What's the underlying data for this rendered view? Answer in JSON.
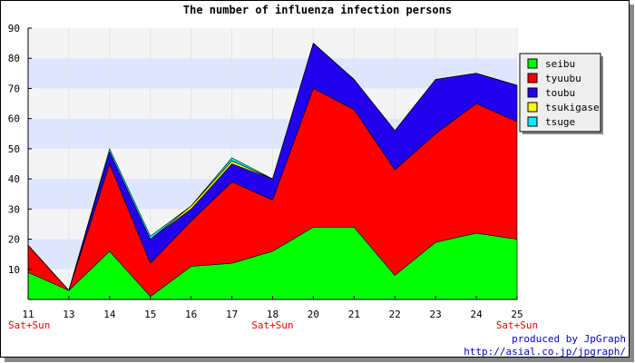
{
  "chart_data": {
    "type": "area",
    "stacked": true,
    "title": "The number of influenza infection persons",
    "x": [
      "11",
      "13",
      "14",
      "15",
      "16",
      "17",
      "18",
      "20",
      "21",
      "22",
      "23",
      "24",
      "25"
    ],
    "weekend_labels": [
      {
        "x": "11",
        "label": "Sat+Sun"
      },
      {
        "x": "18",
        "label": "Sat+Sun"
      },
      {
        "x": "25",
        "label": "Sat+Sun"
      }
    ],
    "ylim": [
      0,
      90
    ],
    "yticks": [
      10,
      20,
      30,
      40,
      50,
      60,
      70,
      80,
      90
    ],
    "grid": "horizontal bands",
    "legend_position": "right",
    "series": [
      {
        "name": "seibu",
        "color": "#00ff00",
        "values": [
          9,
          3,
          16,
          1,
          11,
          12,
          16,
          24,
          24,
          8,
          19,
          22,
          20
        ]
      },
      {
        "name": "tyuubu",
        "color": "#ff0000",
        "values": [
          9,
          0,
          29,
          11,
          15,
          27,
          17,
          46,
          39,
          35,
          36,
          43,
          39
        ]
      },
      {
        "name": "toubu",
        "color": "#2200ee",
        "values": [
          0,
          0,
          4,
          8,
          4,
          6,
          7,
          15,
          10,
          13,
          18,
          10,
          12
        ]
      },
      {
        "name": "tsukigase",
        "color": "#ffff00",
        "values": [
          0,
          0,
          0,
          0,
          1,
          1,
          0,
          0,
          0,
          0,
          0,
          0,
          0
        ]
      },
      {
        "name": "tsuge",
        "color": "#00eeff",
        "values": [
          0,
          0,
          1,
          1,
          0,
          1,
          0,
          0,
          0,
          0,
          0,
          0,
          0
        ]
      }
    ],
    "colors": {
      "band": "#dde6fd",
      "band_alt": "#f4f4f4",
      "weekend_text": "#ff0000",
      "credit_text": "#0000cc"
    }
  },
  "credits": {
    "line1": "produced by JpGraph",
    "line2": "http://asial.co.jp/jpgraph/"
  }
}
